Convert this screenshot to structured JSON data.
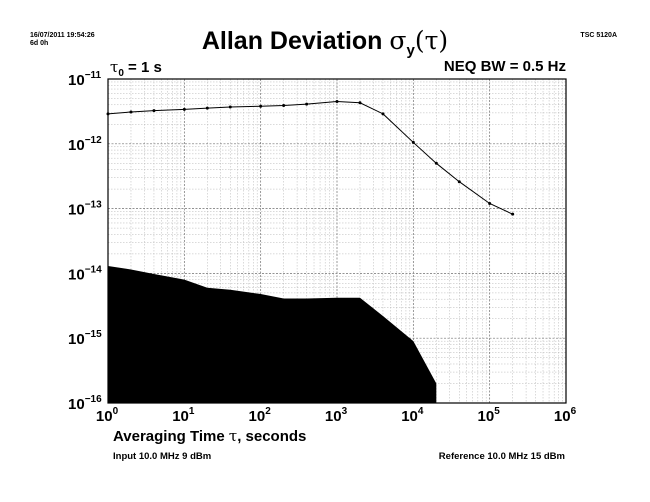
{
  "header": {
    "timestamp": "16/07/2011 19:54:26",
    "duration": "6d 0h",
    "instrument": "TSC 5120A",
    "title_text": "Allan Deviation ",
    "title_symbol": "σ",
    "title_subscript": "y",
    "title_arg": "(τ)",
    "tau0_symbol": "τ",
    "tau0_subscript": "0",
    "tau0_value": " = 1 s",
    "neq_bw": "NEQ BW = 0.5 Hz"
  },
  "footer": {
    "input": "Input 10.0 MHz 9 dBm",
    "reference": "Reference 10.0 MHz 15 dBm"
  },
  "chart_data": {
    "type": "line",
    "title": "Allan Deviation σy(τ)",
    "xlabel": "Averaging Time τ, seconds",
    "xlabel_text": "Averaging Time ",
    "xlabel_symbol": "τ",
    "xlabel_suffix": ", seconds",
    "ylabel": "",
    "x_scale": "log",
    "y_scale": "log",
    "xlim": [
      1,
      1000000
    ],
    "ylim": [
      1e-16,
      1e-11
    ],
    "grid": true,
    "x_ticks": [
      {
        "value": 1,
        "base": "10",
        "exp": "0"
      },
      {
        "value": 10,
        "base": "10",
        "exp": "1"
      },
      {
        "value": 100,
        "base": "10",
        "exp": "2"
      },
      {
        "value": 1000,
        "base": "10",
        "exp": "3"
      },
      {
        "value": 10000,
        "base": "10",
        "exp": "4"
      },
      {
        "value": 100000,
        "base": "10",
        "exp": "5"
      },
      {
        "value": 1000000,
        "base": "10",
        "exp": "6"
      }
    ],
    "y_ticks": [
      {
        "value": 1e-11,
        "base": "10",
        "exp": "−11"
      },
      {
        "value": 1e-12,
        "base": "10",
        "exp": "−12"
      },
      {
        "value": 1e-13,
        "base": "10",
        "exp": "−13"
      },
      {
        "value": 1e-14,
        "base": "10",
        "exp": "−14"
      },
      {
        "value": 1e-15,
        "base": "10",
        "exp": "−15"
      },
      {
        "value": 1e-16,
        "base": "10",
        "exp": "−16"
      }
    ],
    "series": [
      {
        "kind": "line",
        "color": "#000000",
        "x": [
          1,
          2,
          4,
          10,
          20,
          40,
          100,
          200,
          400,
          1000,
          2000,
          4000,
          10000,
          20000,
          40000,
          100000,
          200000
        ],
        "y": [
          2.9e-12,
          3.1e-12,
          3.25e-12,
          3.4e-12,
          3.55e-12,
          3.7e-12,
          3.8e-12,
          3.9e-12,
          4.1e-12,
          4.5e-12,
          4.3e-12,
          2.9e-12,
          1.05e-12,
          5e-13,
          2.6e-13,
          1.2e-13,
          8.2e-14
        ]
      },
      {
        "kind": "noise-floor-area",
        "color": "#000000",
        "x": [
          1,
          2,
          4,
          10,
          20,
          40,
          100,
          200,
          400,
          1000,
          2000,
          4000,
          10000,
          20000
        ],
        "y": [
          1.3e-14,
          1.15e-14,
          9.8e-15,
          8e-15,
          6e-15,
          5.6e-15,
          4.8e-15,
          4.1e-15,
          4.1e-15,
          4.2e-15,
          4.2e-15,
          2.2e-15,
          9e-16,
          2e-16
        ]
      }
    ]
  }
}
